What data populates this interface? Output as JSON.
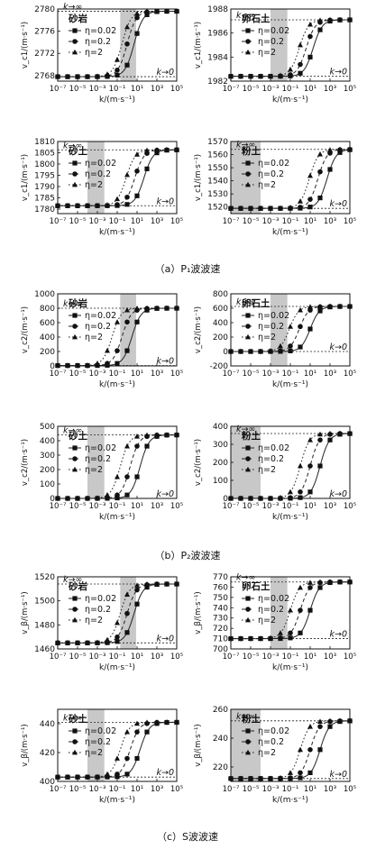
{
  "sections": [
    {
      "label": "（a）P₁波波速"
    },
    {
      "label": "（b）P₂波波速"
    },
    {
      "label": "（c）S波波速"
    }
  ],
  "colors": {
    "shade": "#c8c8c8",
    "line": "#222222",
    "ref": "#222222"
  },
  "legend": [
    "η=0.02",
    "η=0.2",
    "η=2"
  ],
  "ref_labels": {
    "top": "k→∞",
    "bottom": "k→0"
  },
  "chart_data": [
    {
      "type": "line",
      "section": 0,
      "material": "砂岩",
      "ylabel": "v_c1/(m·s⁻¹)",
      "xlabel": "k/(m·s⁻¹)",
      "xscale": "log",
      "xlim": [
        1e-07,
        100000.0
      ],
      "xticks": [
        -7,
        -5,
        -3,
        -1,
        1,
        3,
        5
      ],
      "xtick_labels": [
        "10⁻⁷",
        "10⁻⁵",
        "10⁻³",
        "10⁻¹",
        "10¹",
        "10³",
        "10⁵"
      ],
      "ylim": [
        2767,
        2780
      ],
      "yticks": [
        2768,
        2772,
        2776,
        2780
      ],
      "shade_k": [
        0.2,
        8
      ],
      "v_low": 2767.8,
      "v_high": 2779.6,
      "series": [
        {
          "name": "η=0.02",
          "center_k": 5
        },
        {
          "name": "η=0.2",
          "center_k": 1
        },
        {
          "name": "η=2",
          "center_k": 0.3
        }
      ]
    },
    {
      "type": "line",
      "section": 0,
      "material": "卵石土",
      "ylabel": "v_c1/(m·s⁻¹)",
      "xlabel": "k/(m·s⁻¹)",
      "xscale": "log",
      "xlim": [
        1e-07,
        100000.0
      ],
      "xticks": [
        -7,
        -5,
        -3,
        -1,
        1,
        3,
        5
      ],
      "xtick_labels": [
        "10⁻⁷",
        "10⁻⁵",
        "10⁻³",
        "10⁻¹",
        "10¹",
        "10³",
        "10⁵"
      ],
      "ylim": [
        1982,
        1988
      ],
      "yticks": [
        1982,
        1984,
        1986,
        1988
      ],
      "shade_k": [
        0.001,
        0.05
      ],
      "v_low": 1982.4,
      "v_high": 1987.1,
      "series": [
        {
          "name": "η=0.02",
          "center_k": 20
        },
        {
          "name": "η=0.2",
          "center_k": 4
        },
        {
          "name": "η=2",
          "center_k": 0.8
        }
      ]
    },
    {
      "type": "line",
      "section": 0,
      "material": "砂土",
      "ylabel": "v_c1/(m·s⁻¹)",
      "xlabel": "k/(m·s⁻¹)",
      "xscale": "log",
      "xlim": [
        1e-07,
        100000.0
      ],
      "xticks": [
        -7,
        -5,
        -3,
        -1,
        1,
        3,
        5
      ],
      "xtick_labels": [
        "10⁻⁷",
        "10⁻⁵",
        "10⁻³",
        "10⁻¹",
        "10¹",
        "10³",
        "10⁵"
      ],
      "ylim": [
        1778,
        1810
      ],
      "yticks": [
        1780,
        1785,
        1790,
        1795,
        1800,
        1805,
        1810
      ],
      "shade_k": [
        0.0001,
        0.005
      ],
      "v_low": 1781.5,
      "v_high": 1806.3,
      "series": [
        {
          "name": "η=0.02",
          "center_k": 50
        },
        {
          "name": "η=0.2",
          "center_k": 6
        },
        {
          "name": "η=2",
          "center_k": 0.8
        }
      ]
    },
    {
      "type": "line",
      "section": 0,
      "material": "粉土",
      "ylabel": "v_c1/(m·s⁻¹)",
      "xlabel": "k/(m·s⁻¹)",
      "xscale": "log",
      "xlim": [
        1e-07,
        100000.0
      ],
      "xticks": [
        -7,
        -5,
        -3,
        -1,
        1,
        3,
        5
      ],
      "xtick_labels": [
        "10⁻⁷",
        "10⁻⁵",
        "10⁻³",
        "10⁻¹",
        "10¹",
        "10³",
        "10⁵"
      ],
      "ylim": [
        1515,
        1570
      ],
      "yticks": [
        1520,
        1530,
        1540,
        1550,
        1560,
        1570
      ],
      "shade_k": [
        1e-07,
        0.0001
      ],
      "v_low": 1519,
      "v_high": 1564,
      "series": [
        {
          "name": "η=0.02",
          "center_k": 500
        },
        {
          "name": "η=0.2",
          "center_k": 60
        },
        {
          "name": "η=2",
          "center_k": 8
        }
      ]
    },
    {
      "type": "line",
      "section": 1,
      "material": "砂岩",
      "ylabel": "v_c2/(m·s⁻¹)",
      "xlabel": "k/(m·s⁻¹)",
      "xscale": "log",
      "xlim": [
        1e-07,
        100000.0
      ],
      "xticks": [
        -7,
        -5,
        -3,
        -1,
        1,
        3,
        5
      ],
      "xtick_labels": [
        "10⁻⁷",
        "10⁻⁵",
        "10⁻³",
        "10⁻¹",
        "10¹",
        "10³",
        "10⁵"
      ],
      "ylim": [
        0,
        1000
      ],
      "yticks": [
        0,
        200,
        400,
        600,
        800,
        1000
      ],
      "shade_k": [
        0.2,
        8
      ],
      "v_low": 5,
      "v_high": 800,
      "series": [
        {
          "name": "η=0.02",
          "center_k": 3
        },
        {
          "name": "η=0.2",
          "center_k": 0.3
        },
        {
          "name": "η=2",
          "center_k": 0.03
        }
      ]
    },
    {
      "type": "line",
      "section": 1,
      "material": "卵石土",
      "ylabel": "v_c2/(m·s⁻¹)",
      "xlabel": "k/(m·s⁻¹)",
      "xscale": "log",
      "xlim": [
        1e-07,
        100000.0
      ],
      "xticks": [
        -7,
        -5,
        -3,
        -1,
        1,
        3,
        5
      ],
      "xtick_labels": [
        "10⁻⁷",
        "10⁻⁵",
        "10⁻³",
        "10⁻¹",
        "10¹",
        "10³",
        "10⁵"
      ],
      "ylim": [
        -200,
        800
      ],
      "yticks": [
        -200,
        0,
        200,
        400,
        600,
        800
      ],
      "shade_k": [
        0.001,
        0.05
      ],
      "v_low": 0,
      "v_high": 625,
      "series": [
        {
          "name": "η=0.02",
          "center_k": 10
        },
        {
          "name": "η=0.2",
          "center_k": 0.8
        },
        {
          "name": "η=2",
          "center_k": 0.08
        }
      ]
    },
    {
      "type": "line",
      "section": 1,
      "material": "砂土",
      "ylabel": "v_c2/(m·s⁻¹)",
      "xlabel": "k/(m·s⁻¹)",
      "xscale": "log",
      "xlim": [
        1e-07,
        100000.0
      ],
      "xticks": [
        -7,
        -5,
        -3,
        -1,
        1,
        3,
        5
      ],
      "xtick_labels": [
        "10⁻⁷",
        "10⁻⁵",
        "10⁻³",
        "10⁻¹",
        "10¹",
        "10³",
        "10⁵"
      ],
      "ylim": [
        0,
        500
      ],
      "yticks": [
        0,
        100,
        200,
        300,
        400,
        500
      ],
      "shade_k": [
        0.0001,
        0.005
      ],
      "v_low": 0,
      "v_high": 440,
      "series": [
        {
          "name": "η=0.02",
          "center_k": 20
        },
        {
          "name": "η=0.2",
          "center_k": 2
        },
        {
          "name": "η=2",
          "center_k": 0.2
        }
      ]
    },
    {
      "type": "line",
      "section": 1,
      "material": "粉土",
      "ylabel": "v_c2/(m·s⁻¹)",
      "xlabel": "k/(m·s⁻¹)",
      "xscale": "log",
      "xlim": [
        1e-07,
        100000.0
      ],
      "xticks": [
        -7,
        -5,
        -3,
        -1,
        1,
        3,
        5
      ],
      "xtick_labels": [
        "10⁻⁷",
        "10⁻⁵",
        "10⁻³",
        "10⁻¹",
        "10¹",
        "10³",
        "10⁵"
      ],
      "ylim": [
        0,
        400
      ],
      "yticks": [
        0,
        100,
        200,
        300,
        400
      ],
      "shade_k": [
        1e-07,
        0.0001
      ],
      "v_low": 0,
      "v_high": 360,
      "series": [
        {
          "name": "η=0.02",
          "center_k": 100
        },
        {
          "name": "η=0.2",
          "center_k": 10
        },
        {
          "name": "η=2",
          "center_k": 1
        }
      ]
    },
    {
      "type": "line",
      "section": 2,
      "material": "砂岩",
      "ylabel": "v_β/(m·s⁻¹)",
      "xlabel": "k/(m·s⁻¹)",
      "xscale": "log",
      "xlim": [
        1e-07,
        100000.0
      ],
      "xticks": [
        -7,
        -5,
        -3,
        -1,
        1,
        3,
        5
      ],
      "xtick_labels": [
        "10⁻⁷",
        "10⁻⁵",
        "10⁻³",
        "10⁻¹",
        "10¹",
        "10³",
        "10⁵"
      ],
      "ylim": [
        1460,
        1520
      ],
      "yticks": [
        1460,
        1480,
        1500,
        1520
      ],
      "shade_k": [
        0.2,
        8
      ],
      "v_low": 1465,
      "v_high": 1514,
      "series": [
        {
          "name": "η=0.02",
          "center_k": 5
        },
        {
          "name": "η=0.2",
          "center_k": 1
        },
        {
          "name": "η=2",
          "center_k": 0.2
        }
      ]
    },
    {
      "type": "line",
      "section": 2,
      "material": "卵石土",
      "ylabel": "v_β/(m·s⁻¹)",
      "xlabel": "k/(m·s⁻¹)",
      "xscale": "log",
      "xlim": [
        1e-07,
        100000.0
      ],
      "xticks": [
        -7,
        -5,
        -3,
        -1,
        1,
        3,
        5
      ],
      "xtick_labels": [
        "10⁻⁷",
        "10⁻⁵",
        "10⁻³",
        "10⁻¹",
        "10¹",
        "10³",
        "10⁵"
      ],
      "ylim": [
        700,
        770
      ],
      "yticks": [
        700,
        710,
        720,
        730,
        740,
        750,
        760,
        770
      ],
      "shade_k": [
        0.001,
        0.05
      ],
      "v_low": 710,
      "v_high": 765,
      "series": [
        {
          "name": "η=0.02",
          "center_k": 10
        },
        {
          "name": "η=0.2",
          "center_k": 1
        },
        {
          "name": "η=2",
          "center_k": 0.1
        }
      ]
    },
    {
      "type": "line",
      "section": 2,
      "material": "砂土",
      "ylabel": "v_β/(m·s⁻¹)",
      "xlabel": "k/(m·s⁻¹)",
      "xscale": "log",
      "xlim": [
        1e-07,
        100000.0
      ],
      "xticks": [
        -7,
        -5,
        -3,
        -1,
        1,
        3,
        5
      ],
      "xtick_labels": [
        "10⁻⁷",
        "10⁻⁵",
        "10⁻³",
        "10⁻¹",
        "10¹",
        "10³",
        "10⁵"
      ],
      "ylim": [
        400,
        450
      ],
      "yticks": [
        400,
        420,
        440
      ],
      "shade_k": [
        0.0001,
        0.005
      ],
      "v_low": 403,
      "v_high": 441,
      "series": [
        {
          "name": "η=0.02",
          "center_k": 20
        },
        {
          "name": "η=0.2",
          "center_k": 2
        },
        {
          "name": "η=2",
          "center_k": 0.2
        }
      ]
    },
    {
      "type": "line",
      "section": 2,
      "material": "粉土",
      "ylabel": "v_β/(m·s⁻¹)",
      "xlabel": "k/(m·s⁻¹)",
      "xscale": "log",
      "xlim": [
        1e-07,
        100000.0
      ],
      "xticks": [
        -7,
        -5,
        -3,
        -1,
        1,
        3,
        5
      ],
      "xtick_labels": [
        "10⁻⁷",
        "10⁻⁵",
        "10⁻³",
        "10⁻¹",
        "10¹",
        "10³",
        "10⁵"
      ],
      "ylim": [
        210,
        260
      ],
      "yticks": [
        220,
        240,
        260
      ],
      "shade_k": [
        1e-07,
        0.0001
      ],
      "v_low": 212,
      "v_high": 252,
      "series": [
        {
          "name": "η=0.02",
          "center_k": 100
        },
        {
          "name": "η=0.2",
          "center_k": 10
        },
        {
          "name": "η=2",
          "center_k": 1
        }
      ]
    }
  ]
}
